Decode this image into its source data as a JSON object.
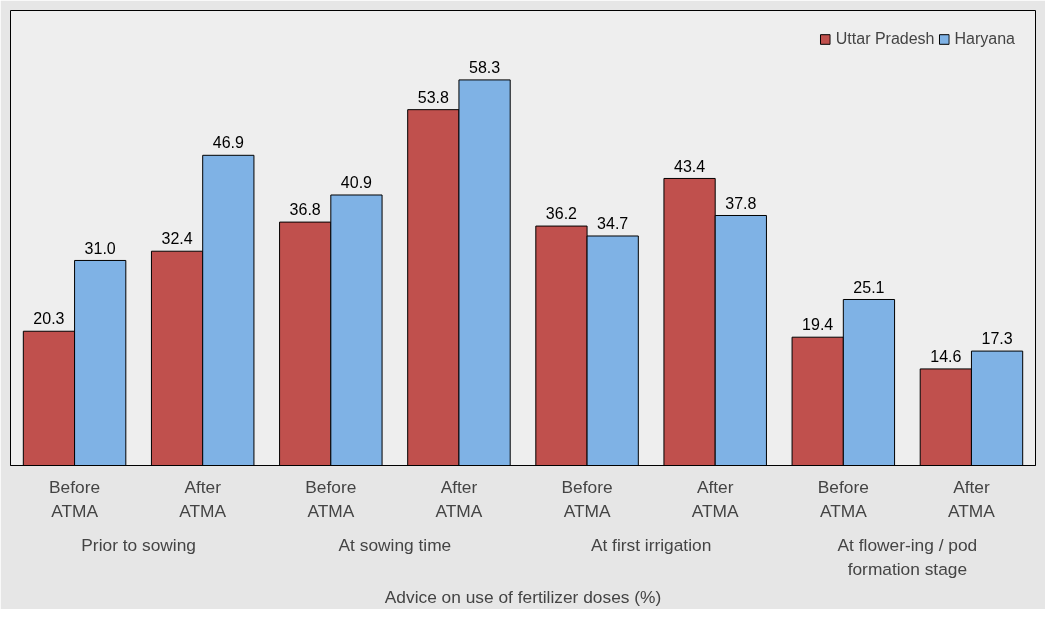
{
  "chart_data": {
    "type": "bar",
    "xlabel": "Advice on use of fertilizer doses (%)",
    "categories": [
      "Before ATMA",
      "After ATMA",
      "Before ATMA",
      "After ATMA",
      "Before ATMA",
      "After ATMA",
      "Before ATMA",
      "After ATMA"
    ],
    "series": [
      {
        "name": "Uttar Pradesh",
        "color": "#c0504d",
        "values": [
          20.3,
          32.4,
          36.8,
          53.8,
          36.2,
          43.4,
          19.4,
          14.6
        ],
        "value_labels": [
          "20.3",
          "32.4",
          "36.8",
          "53.8",
          "36.2",
          "43.4",
          "19.4",
          "14.6"
        ]
      },
      {
        "name": "Haryana",
        "color": "#7fb2e5",
        "values": [
          31.0,
          46.9,
          40.9,
          58.3,
          34.7,
          37.8,
          25.1,
          17.3
        ],
        "value_labels": [
          "31.0",
          "46.9",
          "40.9",
          "58.3",
          "34.7",
          "37.8",
          "25.1",
          "17.3"
        ]
      }
    ],
    "annotations": [
      "Prior to sowing",
      "At sowing time",
      "At first irrigation",
      "At flower-ing / pod formation stage"
    ],
    "legend": "top right",
    "grid": false
  }
}
